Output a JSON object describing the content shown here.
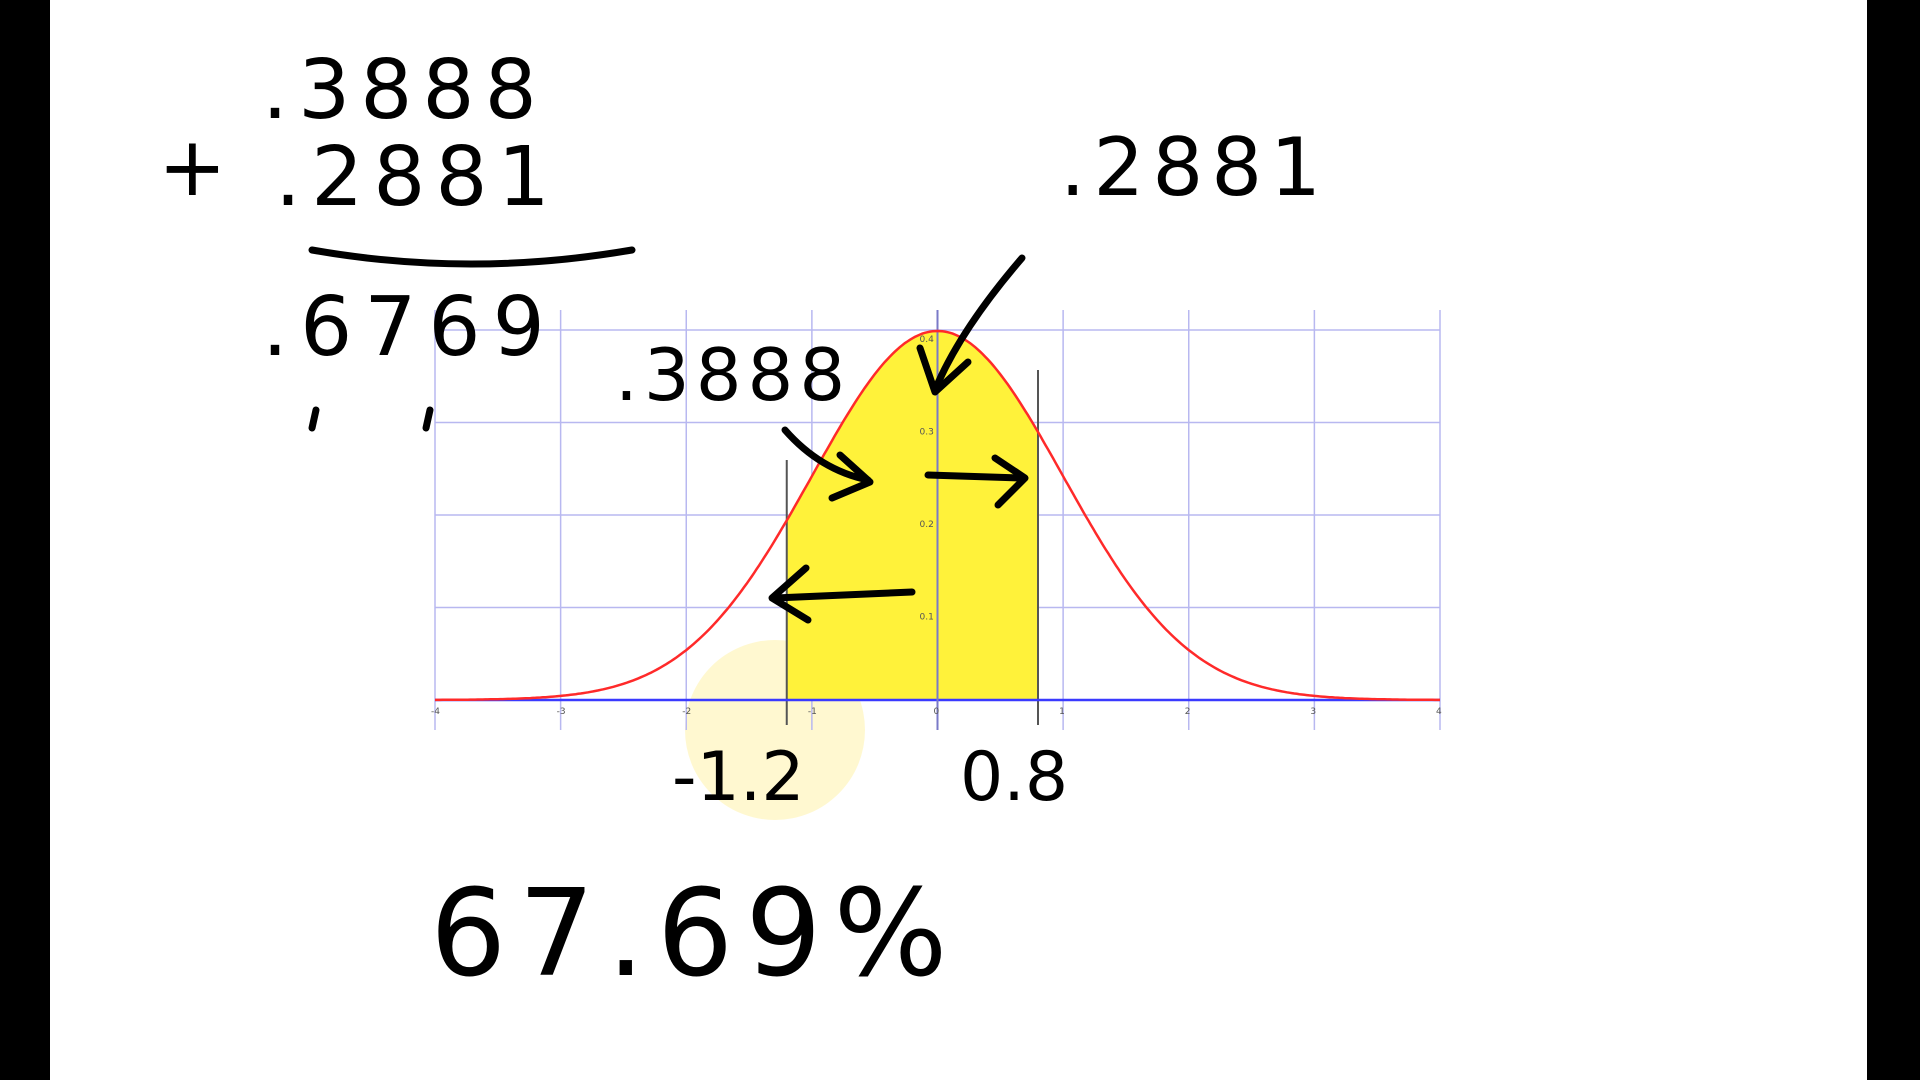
{
  "calculation": {
    "addend_1": ".3888",
    "operator": "+",
    "addend_2": ".2881",
    "sum": ".6769"
  },
  "annotations": {
    "left_area": ".3888",
    "right_area": ".2881",
    "z_left": "-1.2",
    "z_right": "0.8",
    "percent": "67.69%"
  },
  "graph": {
    "x_range": [
      -4,
      4
    ],
    "y_range": [
      0,
      0.4
    ],
    "shaded_from": -1.2,
    "shaded_to": 0.8,
    "x_ticks": [
      "-4",
      "-3",
      "-2",
      "-1",
      "0",
      "1",
      "2",
      "3",
      "4"
    ],
    "y_ticks": [
      "0.1",
      "0.2",
      "0.3",
      "0.4"
    ],
    "curve_color": "#ff2a2a",
    "fill_color": "#fff23a",
    "grid_color": "#b8b8f0",
    "axis_color": "#3a3aff"
  }
}
